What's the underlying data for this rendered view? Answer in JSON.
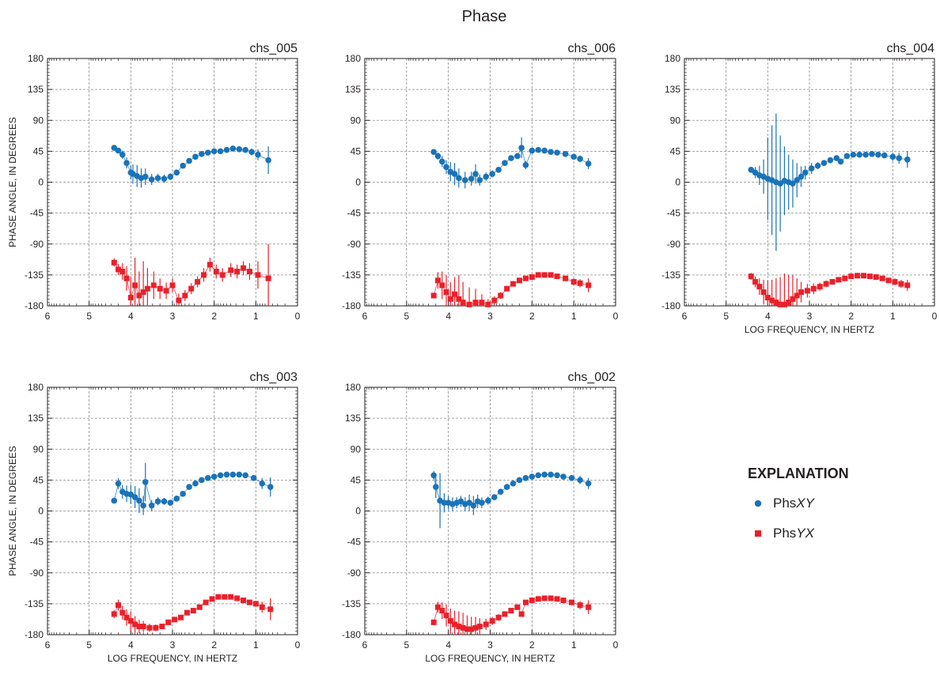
{
  "figure": {
    "title": "Phase",
    "ylabel": "PHASE ANGLE, IN DEGREES",
    "xlabel": "LOG FREQUENCY, IN HERTZ",
    "colors": {
      "xy": "#1a73b8",
      "yx": "#e8212b",
      "grid": "#8a8a8a",
      "axis": "#231f20"
    }
  },
  "legend": {
    "title": "EXPLANATION",
    "items": [
      {
        "prefix": "Phs",
        "suffix": "XY",
        "color": "#1a73b8",
        "marker": "circle"
      },
      {
        "prefix": "Phs",
        "suffix": "YX",
        "color": "#e8212b",
        "marker": "square"
      }
    ]
  },
  "chart_data": [
    {
      "type": "scatter",
      "title": "chs_005",
      "xlabel": "",
      "ylabel": "PHASE ANGLE, IN DEGREES",
      "xlim": [
        6,
        0
      ],
      "ylim": [
        -180,
        180
      ],
      "xticks": [
        6,
        5,
        4,
        3,
        2,
        1,
        0
      ],
      "yticks": [
        180,
        135,
        90,
        45,
        0,
        -45,
        -90,
        -135,
        -180
      ],
      "grid": true,
      "series": [
        {
          "name": "PhsXY",
          "marker": "circle",
          "color": "#1a73b8",
          "x": [
            4.4,
            4.3,
            4.2,
            4.1,
            4.0,
            3.95,
            3.85,
            3.75,
            3.65,
            3.5,
            3.35,
            3.2,
            3.05,
            2.9,
            2.75,
            2.6,
            2.45,
            2.3,
            2.15,
            2.0,
            1.85,
            1.7,
            1.55,
            1.4,
            1.25,
            1.1,
            0.95,
            0.7
          ],
          "y": [
            50,
            46,
            40,
            28,
            14,
            12,
            9,
            6,
            8,
            4,
            6,
            5,
            8,
            14,
            24,
            31,
            37,
            41,
            43,
            45,
            45,
            47,
            49,
            48,
            47,
            44,
            40,
            32
          ],
          "err": [
            4,
            4,
            6,
            8,
            10,
            14,
            16,
            14,
            12,
            8,
            6,
            6,
            5,
            4,
            3,
            3,
            3,
            3,
            3,
            3,
            3,
            3,
            3,
            4,
            4,
            5,
            8,
            20
          ]
        },
        {
          "name": "PhsYX",
          "marker": "square",
          "color": "#e8212b",
          "x": [
            4.4,
            4.3,
            4.2,
            4.1,
            4.0,
            3.9,
            3.8,
            3.7,
            3.6,
            3.45,
            3.3,
            3.15,
            3.0,
            2.85,
            2.7,
            2.55,
            2.4,
            2.25,
            2.1,
            1.95,
            1.8,
            1.6,
            1.45,
            1.3,
            1.15,
            0.95,
            0.7
          ],
          "y": [
            -117,
            -127,
            -130,
            -140,
            -168,
            -150,
            -165,
            -160,
            -155,
            -150,
            -155,
            -158,
            -150,
            -172,
            -165,
            -155,
            -145,
            -135,
            -120,
            -130,
            -135,
            -128,
            -130,
            -125,
            -130,
            -135,
            -140
          ],
          "err": [
            6,
            8,
            12,
            18,
            30,
            40,
            35,
            45,
            30,
            20,
            15,
            12,
            10,
            10,
            8,
            8,
            8,
            10,
            10,
            10,
            10,
            10,
            10,
            10,
            12,
            20,
            50
          ]
        }
      ]
    },
    {
      "type": "scatter",
      "title": "chs_006",
      "xlabel": "",
      "ylabel": "",
      "xlim": [
        6,
        0
      ],
      "ylim": [
        -180,
        180
      ],
      "xticks": [
        6,
        5,
        4,
        3,
        2,
        1,
        0
      ],
      "yticks": [
        180,
        135,
        90,
        45,
        0,
        -45,
        -90,
        -135,
        -180
      ],
      "grid": true,
      "series": [
        {
          "name": "PhsXY",
          "marker": "circle",
          "color": "#1a73b8",
          "x": [
            4.35,
            4.25,
            4.15,
            4.05,
            3.95,
            3.85,
            3.75,
            3.6,
            3.45,
            3.35,
            3.25,
            3.1,
            2.95,
            2.8,
            2.65,
            2.5,
            2.35,
            2.25,
            2.15,
            2.0,
            1.85,
            1.7,
            1.55,
            1.4,
            1.2,
            1.0,
            0.85,
            0.65
          ],
          "y": [
            44,
            38,
            30,
            22,
            15,
            12,
            6,
            3,
            5,
            12,
            3,
            8,
            12,
            18,
            28,
            35,
            38,
            50,
            25,
            46,
            47,
            46,
            44,
            43,
            41,
            37,
            34,
            27
          ],
          "err": [
            4,
            5,
            8,
            10,
            14,
            16,
            14,
            12,
            10,
            14,
            8,
            6,
            5,
            4,
            3,
            3,
            3,
            15,
            6,
            4,
            3,
            3,
            3,
            3,
            3,
            4,
            5,
            8
          ]
        },
        {
          "name": "PhsYX",
          "marker": "square",
          "color": "#e8212b",
          "x": [
            4.35,
            4.25,
            4.15,
            4.05,
            3.95,
            3.85,
            3.75,
            3.65,
            3.5,
            3.35,
            3.2,
            3.05,
            2.9,
            2.75,
            2.6,
            2.45,
            2.3,
            2.15,
            2.0,
            1.85,
            1.7,
            1.55,
            1.4,
            1.2,
            1.0,
            0.85,
            0.65
          ],
          "y": [
            -165,
            -143,
            -150,
            -160,
            -170,
            -163,
            -170,
            -175,
            -178,
            -175,
            -175,
            -178,
            -172,
            -165,
            -155,
            -148,
            -143,
            -140,
            -138,
            -135,
            -135,
            -135,
            -137,
            -140,
            -145,
            -147,
            -150
          ],
          "err": [
            4,
            12,
            20,
            25,
            25,
            25,
            35,
            30,
            25,
            20,
            12,
            8,
            6,
            5,
            4,
            4,
            4,
            3,
            3,
            3,
            3,
            3,
            3,
            4,
            5,
            6,
            10
          ]
        }
      ]
    },
    {
      "type": "scatter",
      "title": "chs_004",
      "xlabel": "LOG FREQUENCY, IN HERTZ",
      "ylabel": "",
      "xlim": [
        6,
        0
      ],
      "ylim": [
        -180,
        180
      ],
      "xticks": [
        6,
        5,
        4,
        3,
        2,
        1,
        0
      ],
      "yticks": [
        180,
        135,
        90,
        45,
        0,
        -45,
        -90,
        -135,
        -180
      ],
      "grid": true,
      "series": [
        {
          "name": "PhsXY",
          "marker": "circle",
          "color": "#1a73b8",
          "x": [
            4.4,
            4.3,
            4.2,
            4.1,
            4.0,
            3.9,
            3.8,
            3.7,
            3.6,
            3.5,
            3.4,
            3.3,
            3.2,
            3.1,
            2.95,
            2.8,
            2.65,
            2.5,
            2.35,
            2.25,
            2.1,
            1.95,
            1.8,
            1.65,
            1.5,
            1.35,
            1.2,
            1.0,
            0.85,
            0.65
          ],
          "y": [
            18,
            14,
            10,
            8,
            5,
            3,
            0,
            -2,
            2,
            0,
            -2,
            3,
            8,
            14,
            20,
            24,
            28,
            32,
            35,
            30,
            38,
            40,
            40,
            40,
            41,
            40,
            39,
            37,
            35,
            33
          ],
          "err": [
            4,
            8,
            14,
            25,
            60,
            80,
            100,
            70,
            50,
            40,
            35,
            25,
            15,
            10,
            8,
            5,
            4,
            4,
            3,
            3,
            3,
            3,
            3,
            3,
            3,
            3,
            4,
            6,
            8,
            12
          ]
        },
        {
          "name": "PhsYX",
          "marker": "square",
          "color": "#e8212b",
          "x": [
            4.4,
            4.3,
            4.2,
            4.1,
            4.0,
            3.9,
            3.8,
            3.7,
            3.6,
            3.5,
            3.4,
            3.3,
            3.2,
            3.05,
            2.9,
            2.75,
            2.6,
            2.45,
            2.3,
            2.15,
            2.0,
            1.85,
            1.7,
            1.55,
            1.4,
            1.25,
            1.1,
            0.95,
            0.8,
            0.65
          ],
          "y": [
            -137,
            -145,
            -152,
            -160,
            -168,
            -172,
            -175,
            -178,
            -178,
            -175,
            -170,
            -165,
            -160,
            -158,
            -155,
            -152,
            -148,
            -145,
            -142,
            -140,
            -137,
            -136,
            -136,
            -137,
            -138,
            -140,
            -143,
            -145,
            -148,
            -150
          ],
          "err": [
            5,
            8,
            12,
            18,
            25,
            30,
            35,
            40,
            45,
            40,
            35,
            25,
            15,
            10,
            8,
            6,
            5,
            4,
            3,
            3,
            3,
            3,
            3,
            3,
            3,
            3,
            4,
            5,
            6,
            8
          ]
        }
      ]
    },
    {
      "type": "scatter",
      "title": "chs_003",
      "xlabel": "LOG FREQUENCY, IN HERTZ",
      "ylabel": "PHASE ANGLE, IN DEGREES",
      "xlim": [
        6,
        0
      ],
      "ylim": [
        -180,
        180
      ],
      "xticks": [
        6,
        5,
        4,
        3,
        2,
        1,
        0
      ],
      "yticks": [
        180,
        135,
        90,
        45,
        0,
        -45,
        -90,
        -135,
        -180
      ],
      "grid": true,
      "series": [
        {
          "name": "PhsXY",
          "marker": "circle",
          "color": "#1a73b8",
          "x": [
            4.4,
            4.3,
            4.2,
            4.1,
            4.0,
            3.9,
            3.8,
            3.7,
            3.65,
            3.5,
            3.35,
            3.2,
            3.05,
            2.9,
            2.75,
            2.6,
            2.45,
            2.3,
            2.15,
            2.0,
            1.85,
            1.7,
            1.55,
            1.4,
            1.25,
            1.05,
            0.85,
            0.65
          ],
          "y": [
            15,
            40,
            28,
            25,
            24,
            20,
            15,
            8,
            42,
            8,
            14,
            14,
            12,
            18,
            25,
            35,
            40,
            45,
            48,
            50,
            52,
            53,
            53,
            53,
            52,
            48,
            40,
            35
          ],
          "err": [
            4,
            8,
            10,
            12,
            14,
            16,
            18,
            14,
            28,
            8,
            6,
            5,
            4,
            4,
            3,
            3,
            3,
            3,
            3,
            3,
            3,
            3,
            3,
            3,
            3,
            4,
            8,
            14
          ]
        },
        {
          "name": "PhsYX",
          "marker": "square",
          "color": "#e8212b",
          "x": [
            4.4,
            4.3,
            4.2,
            4.1,
            4.0,
            3.9,
            3.8,
            3.7,
            3.55,
            3.4,
            3.25,
            3.1,
            2.95,
            2.8,
            2.65,
            2.5,
            2.35,
            2.2,
            2.05,
            1.9,
            1.75,
            1.6,
            1.45,
            1.3,
            1.15,
            1.0,
            0.85,
            0.65
          ],
          "y": [
            -150,
            -137,
            -148,
            -155,
            -160,
            -165,
            -168,
            -168,
            -170,
            -170,
            -168,
            -162,
            -158,
            -155,
            -148,
            -145,
            -140,
            -133,
            -128,
            -125,
            -125,
            -125,
            -127,
            -130,
            -133,
            -135,
            -140,
            -143
          ],
          "err": [
            6,
            8,
            10,
            12,
            14,
            12,
            10,
            8,
            6,
            5,
            4,
            4,
            4,
            3,
            3,
            3,
            3,
            3,
            3,
            3,
            3,
            3,
            3,
            3,
            3,
            4,
            8,
            16
          ]
        }
      ]
    },
    {
      "type": "scatter",
      "title": "chs_002",
      "xlabel": "LOG FREQUENCY, IN HERTZ",
      "ylabel": "",
      "xlim": [
        6,
        0
      ],
      "ylim": [
        -180,
        180
      ],
      "xticks": [
        6,
        5,
        4,
        3,
        2,
        1,
        0
      ],
      "yticks": [
        180,
        135,
        90,
        45,
        0,
        -45,
        -90,
        -135,
        -180
      ],
      "grid": true,
      "series": [
        {
          "name": "PhsXY",
          "marker": "circle",
          "color": "#1a73b8",
          "x": [
            4.35,
            4.3,
            4.2,
            4.1,
            4.0,
            3.9,
            3.8,
            3.7,
            3.6,
            3.5,
            3.4,
            3.3,
            3.2,
            3.05,
            2.9,
            2.75,
            2.6,
            2.45,
            2.3,
            2.15,
            2.0,
            1.85,
            1.7,
            1.55,
            1.4,
            1.25,
            1.05,
            0.85,
            0.65
          ],
          "y": [
            52,
            35,
            15,
            12,
            12,
            10,
            12,
            14,
            10,
            12,
            8,
            14,
            12,
            15,
            20,
            28,
            35,
            40,
            45,
            48,
            50,
            52,
            53,
            53,
            52,
            50,
            48,
            45,
            40
          ],
          "err": [
            6,
            16,
            40,
            14,
            10,
            10,
            8,
            8,
            10,
            12,
            14,
            10,
            8,
            6,
            4,
            3,
            3,
            3,
            3,
            3,
            3,
            3,
            3,
            3,
            3,
            3,
            4,
            6,
            8
          ]
        },
        {
          "name": "PhsYX",
          "marker": "square",
          "color": "#e8212b",
          "x": [
            4.35,
            4.25,
            4.15,
            4.05,
            3.95,
            3.85,
            3.75,
            3.65,
            3.55,
            3.45,
            3.35,
            3.25,
            3.1,
            2.95,
            2.8,
            2.65,
            2.5,
            2.35,
            2.25,
            2.15,
            2.0,
            1.85,
            1.7,
            1.55,
            1.4,
            1.25,
            1.05,
            0.85,
            0.65
          ],
          "y": [
            -162,
            -140,
            -145,
            -152,
            -160,
            -165,
            -168,
            -170,
            -172,
            -172,
            -170,
            -168,
            -165,
            -160,
            -155,
            -150,
            -145,
            -140,
            -150,
            -133,
            -130,
            -128,
            -127,
            -127,
            -128,
            -130,
            -133,
            -137,
            -140
          ],
          "err": [
            4,
            8,
            12,
            16,
            18,
            20,
            22,
            22,
            20,
            18,
            16,
            12,
            8,
            6,
            5,
            4,
            3,
            3,
            3,
            3,
            3,
            3,
            3,
            3,
            3,
            3,
            4,
            6,
            10
          ]
        }
      ]
    }
  ]
}
